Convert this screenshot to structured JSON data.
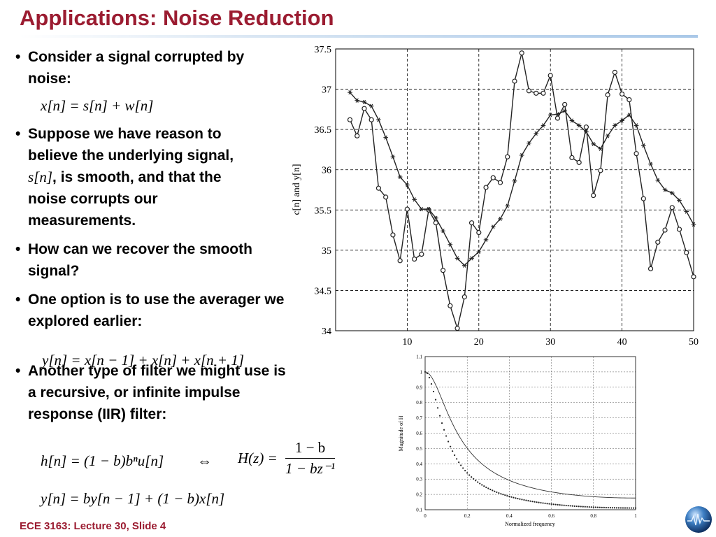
{
  "slide": {
    "title": "Applications: Noise Reduction",
    "footer": "ECE 3163: Lecture 30, Slide 4"
  },
  "bullets": [
    {
      "text": "Consider a signal corrupted by noise:"
    },
    {
      "text_before": "Suppose we have reason to believe the underlying signal, ",
      "math": "s[n]",
      "text_after": ", is smooth, and that the noise corrupts our measurements."
    },
    {
      "text": "How can we recover the smooth signal?"
    },
    {
      "text": "One option is to use the averager we explored earlier:"
    },
    {
      "text": "Another type of filter we might use is a recursive, or infinite impulse response (IIR) filter:"
    }
  ],
  "equations": {
    "signal_model": "x[n] = s[n] + w[n]",
    "averager": "y[n] = x[n − 1] + x[n] + x[n + 1]",
    "impulse_response": "h[n] = (1 − b)bⁿu[n]",
    "equiv_symbol": "⇔",
    "transfer_lhs": "H(z) =",
    "transfer_num": "1 − b",
    "transfer_den": "1 − bz⁻¹",
    "difference": "y[n] = by[n − 1] + (1 − b)x[n]"
  },
  "chart_data": [
    {
      "type": "line",
      "title": "",
      "ylabel": "c[n] and y[n]",
      "xlabel": "",
      "xlim": [
        0,
        50
      ],
      "ylim": [
        34,
        37.5
      ],
      "xticks": [
        10,
        20,
        30,
        40,
        50
      ],
      "yticks": [
        34,
        34.5,
        35,
        35.5,
        36,
        36.5,
        37,
        37.5
      ],
      "grid": true,
      "x": [
        2,
        3,
        4,
        5,
        6,
        7,
        8,
        9,
        10,
        11,
        12,
        13,
        14,
        15,
        16,
        17,
        18,
        19,
        20,
        21,
        22,
        23,
        24,
        25,
        26,
        27,
        28,
        29,
        30,
        31,
        32,
        33,
        34,
        35,
        36,
        37,
        38,
        39,
        40,
        41,
        42,
        43,
        44,
        45,
        46,
        47,
        48,
        49,
        50
      ],
      "series": [
        {
          "marker": "circle",
          "values": [
            36.62,
            36.42,
            36.76,
            36.62,
            35.77,
            35.66,
            35.19,
            34.87,
            35.51,
            34.89,
            34.95,
            35.5,
            35.34,
            34.75,
            34.31,
            34.03,
            34.42,
            35.34,
            35.22,
            35.78,
            35.9,
            35.84,
            36.16,
            37.1,
            37.45,
            36.98,
            36.95,
            36.95,
            37.17,
            36.64,
            36.81,
            36.15,
            36.09,
            36.53,
            35.68,
            35.99,
            36.93,
            37.21,
            36.94,
            36.87,
            36.2,
            35.64,
            34.77,
            35.1,
            35.25,
            35.53,
            35.26,
            34.97,
            34.67
          ]
        },
        {
          "marker": "star",
          "values": [
            36.96,
            36.86,
            36.84,
            36.79,
            36.62,
            36.4,
            36.16,
            35.91,
            35.81,
            35.63,
            35.51,
            35.51,
            35.4,
            35.24,
            35.07,
            34.9,
            34.81,
            34.9,
            34.98,
            35.13,
            35.29,
            35.39,
            35.55,
            35.86,
            36.18,
            36.33,
            36.45,
            36.55,
            36.68,
            36.69,
            36.73,
            36.61,
            36.55,
            36.47,
            36.32,
            36.26,
            36.42,
            36.55,
            36.61,
            36.68,
            36.55,
            36.3,
            36.07,
            35.87,
            35.75,
            35.71,
            35.62,
            35.48,
            35.32
          ]
        }
      ]
    },
    {
      "type": "line",
      "title": "",
      "xlabel": "Normalized frequency",
      "ylabel": "Magnitude of H",
      "xlim": [
        0,
        1
      ],
      "ylim": [
        0.1,
        1.1
      ],
      "xticks": [
        0,
        0.2,
        0.4,
        0.6,
        0.8,
        1
      ],
      "yticks": [
        0.1,
        0.2,
        0.3,
        0.4,
        0.5,
        0.6,
        0.7,
        0.8,
        0.9,
        1,
        1.1
      ],
      "grid": true,
      "series": [
        {
          "style": "solid",
          "b": 0.7
        },
        {
          "style": "dotted",
          "b": 0.8
        }
      ]
    }
  ]
}
